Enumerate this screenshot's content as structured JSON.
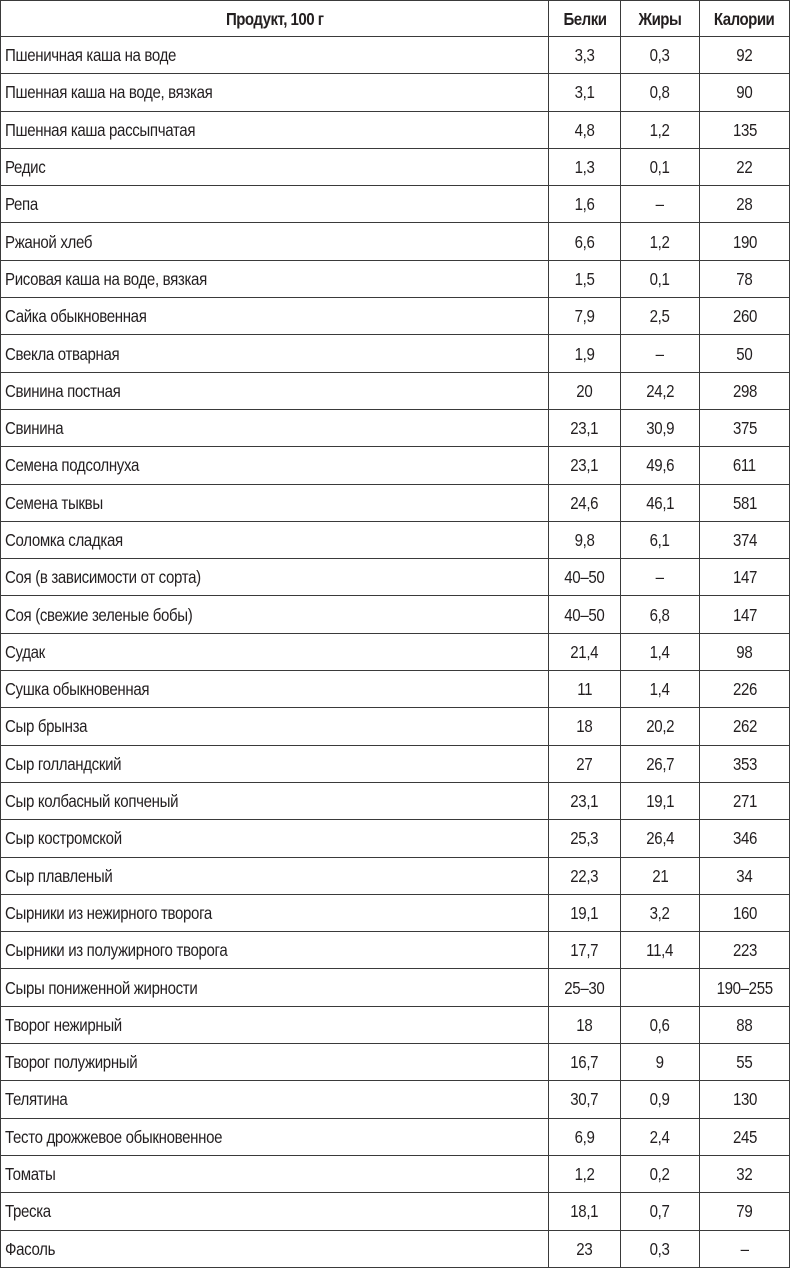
{
  "table": {
    "headers": [
      "Продукт, 100 г",
      "Белки",
      "Жиры",
      "Калории"
    ],
    "rows": [
      [
        "Пшеничная каша на воде",
        "3,3",
        "0,3",
        "92"
      ],
      [
        "Пшенная каша на воде, вязкая",
        "3,1",
        "0,8",
        "90"
      ],
      [
        "Пшенная каша рассыпчатая",
        "4,8",
        "1,2",
        "135"
      ],
      [
        "Редис",
        "1,3",
        "0,1",
        "22"
      ],
      [
        "Репа",
        "1,6",
        "–",
        "28"
      ],
      [
        "Ржаной хлеб",
        "6,6",
        "1,2",
        "190"
      ],
      [
        "Рисовая каша на воде, вязкая",
        "1,5",
        "0,1",
        "78"
      ],
      [
        "Сайка обыкновенная",
        "7,9",
        "2,5",
        "260"
      ],
      [
        "Свекла отварная",
        "1,9",
        "–",
        "50"
      ],
      [
        "Свинина постная",
        "20",
        "24,2",
        "298"
      ],
      [
        "Свинина",
        "23,1",
        "30,9",
        "375"
      ],
      [
        "Семена подсолнуха",
        "23,1",
        "49,6",
        "611"
      ],
      [
        "Семена тыквы",
        "24,6",
        "46,1",
        "581"
      ],
      [
        "Соломка сладкая",
        "9,8",
        "6,1",
        "374"
      ],
      [
        "Соя (в зависимости от сорта)",
        "40–50",
        "–",
        "147"
      ],
      [
        "Соя (свежие зеленые бобы)",
        "40–50",
        "6,8",
        "147"
      ],
      [
        "Судак",
        "21,4",
        "1,4",
        "98"
      ],
      [
        "Сушка обыкновенная",
        "11",
        "1,4",
        "226"
      ],
      [
        "Сыр брынза",
        "18",
        "20,2",
        "262"
      ],
      [
        "Сыр голландский",
        "27",
        "26,7",
        "353"
      ],
      [
        "Сыр колбасный копченый",
        "23,1",
        "19,1",
        "271"
      ],
      [
        "Сыр костромской",
        "25,3",
        "26,4",
        "346"
      ],
      [
        "Сыр плавленый",
        "22,3",
        "21",
        "34"
      ],
      [
        "Сырники из нежирного творога",
        "19,1",
        "3,2",
        "160"
      ],
      [
        "Сырники из полужирного творога",
        "17,7",
        "11,4",
        "223"
      ],
      [
        "Сыры пониженной жирности",
        "25–30",
        "",
        "190–255"
      ],
      [
        "Творог нежирный",
        "18",
        "0,6",
        "88"
      ],
      [
        "Творог полужирный",
        "16,7",
        "9",
        "55"
      ],
      [
        "Телятина",
        "30,7",
        "0,9",
        "130"
      ],
      [
        "Тесто дрожжевое обыкновенное",
        "6,9",
        "2,4",
        "245"
      ],
      [
        "Томаты",
        "1,2",
        "0,2",
        "32"
      ],
      [
        "Треска",
        "18,1",
        "0,7",
        "79"
      ],
      [
        "Фасоль",
        "23",
        "0,3",
        "–"
      ]
    ]
  }
}
